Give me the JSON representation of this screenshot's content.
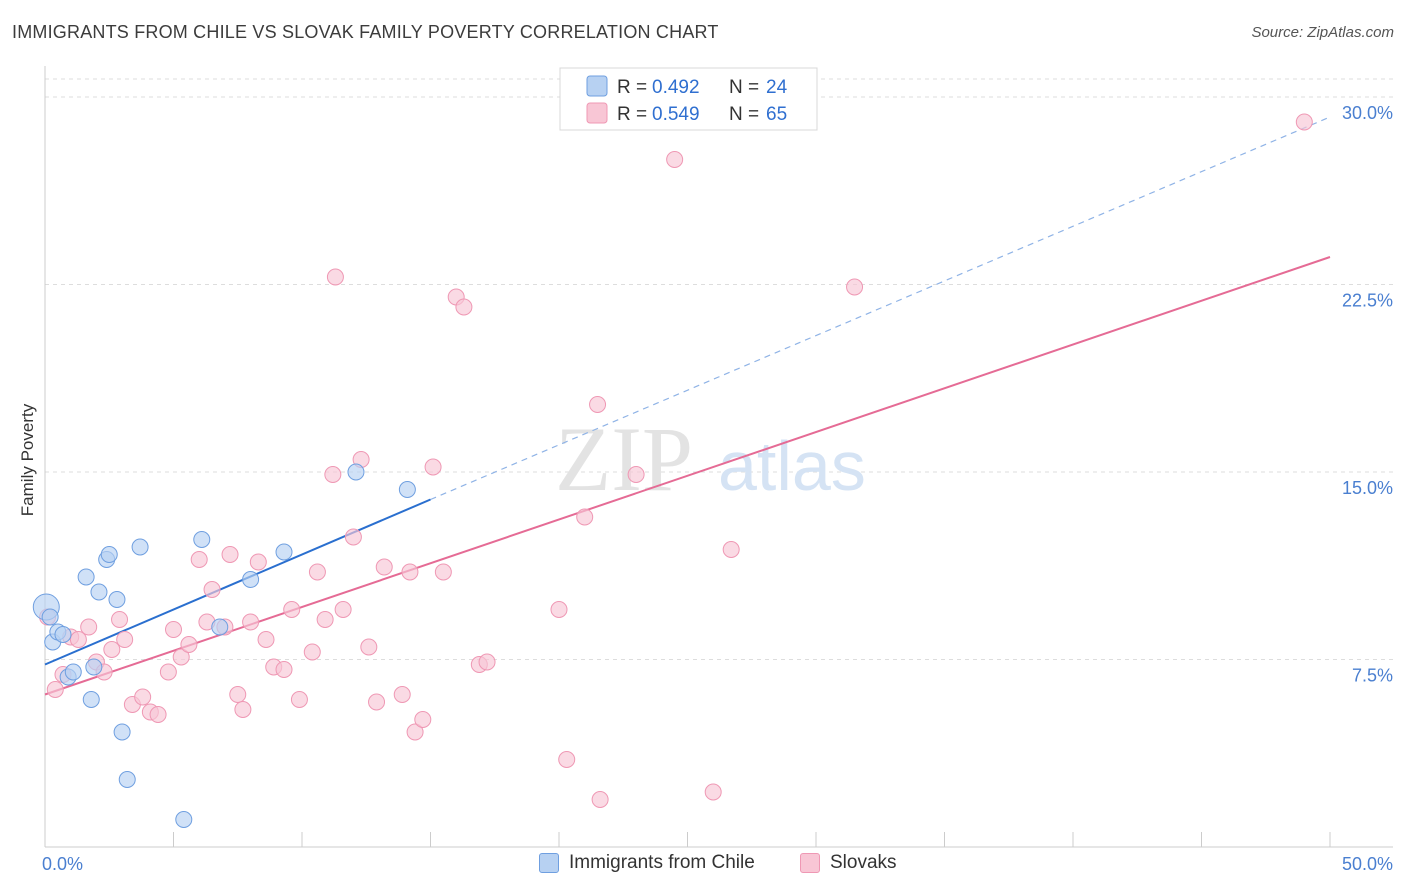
{
  "header": {
    "title": "IMMIGRANTS FROM CHILE VS SLOVAK FAMILY POVERTY CORRELATION CHART",
    "source": "Source: ZipAtlas.com"
  },
  "watermark": {
    "zip": "ZIP",
    "atlas": "atlas"
  },
  "colors": {
    "chile_fill": "#b7d1f2",
    "chile_stroke": "#6f9fe0",
    "chile_line": "#2a6fcf",
    "slovak_fill": "#f8c6d5",
    "slovak_stroke": "#ef98b4",
    "slovak_line": "#e56b95",
    "tick_label": "#4a7fd0",
    "grid": "#dddddd"
  },
  "legend_top": {
    "rows": [
      {
        "r_label": "R = ",
        "r_value": "0.492",
        "n_label": "N = ",
        "n_value": "24"
      },
      {
        "r_label": "R = ",
        "r_value": "0.549",
        "n_label": "N = ",
        "n_value": "65"
      }
    ]
  },
  "legend_bottom": {
    "items": [
      {
        "label": "Immigrants from Chile"
      },
      {
        "label": "Slovaks"
      }
    ]
  },
  "chart_data": {
    "type": "scatter",
    "title": "IMMIGRANTS FROM CHILE VS SLOVAK FAMILY POVERTY CORRELATION CHART",
    "xlabel": "",
    "ylabel": "Family Poverty",
    "xlim": [
      0,
      50
    ],
    "ylim": [
      0,
      31
    ],
    "x_tick_labels": [
      "0.0%",
      "50.0%"
    ],
    "y_ticks": [
      7.5,
      15.0,
      22.5,
      30.0
    ],
    "y_tick_labels": [
      "7.5%",
      "15.0%",
      "22.5%",
      "30.0%"
    ],
    "legend_position": "top-center",
    "series": [
      {
        "name": "Immigrants from Chile",
        "r": 0.492,
        "n": 24,
        "points": [
          [
            0.05,
            9.6
          ],
          [
            0.3,
            8.2
          ],
          [
            0.5,
            8.6
          ],
          [
            0.7,
            8.5
          ],
          [
            0.9,
            6.8
          ],
          [
            1.1,
            7.0
          ],
          [
            1.6,
            10.8
          ],
          [
            1.8,
            5.9
          ],
          [
            1.9,
            7.2
          ],
          [
            2.1,
            10.2
          ],
          [
            2.4,
            11.5
          ],
          [
            2.5,
            11.7
          ],
          [
            2.8,
            9.9
          ],
          [
            3.0,
            4.6
          ],
          [
            3.2,
            2.7
          ],
          [
            3.7,
            12.0
          ],
          [
            5.4,
            1.1
          ],
          [
            6.1,
            12.3
          ],
          [
            6.8,
            8.8
          ],
          [
            8.0,
            10.7
          ],
          [
            9.3,
            11.8
          ],
          [
            12.1,
            15.0
          ],
          [
            14.1,
            14.3
          ],
          [
            0.2,
            9.2
          ]
        ],
        "trend": {
          "x0": 0,
          "y0": 7.3,
          "x1": 15,
          "y1": 13.9
        },
        "trend_extension": {
          "x0": 15,
          "y0": 13.9,
          "x1": 50,
          "y1": 29.2
        }
      },
      {
        "name": "Slovaks",
        "r": 0.549,
        "n": 65,
        "points": [
          [
            0.1,
            9.2
          ],
          [
            0.4,
            6.3
          ],
          [
            0.7,
            6.9
          ],
          [
            1.0,
            8.4
          ],
          [
            1.3,
            8.3
          ],
          [
            1.7,
            8.8
          ],
          [
            2.0,
            7.4
          ],
          [
            2.3,
            7.0
          ],
          [
            2.6,
            7.9
          ],
          [
            2.9,
            9.1
          ],
          [
            3.1,
            8.3
          ],
          [
            3.4,
            5.7
          ],
          [
            3.8,
            6.0
          ],
          [
            4.1,
            5.4
          ],
          [
            4.4,
            5.3
          ],
          [
            4.8,
            7.0
          ],
          [
            5.0,
            8.7
          ],
          [
            5.3,
            7.6
          ],
          [
            5.6,
            8.1
          ],
          [
            6.0,
            11.5
          ],
          [
            6.3,
            9.0
          ],
          [
            6.5,
            10.3
          ],
          [
            7.0,
            8.8
          ],
          [
            7.2,
            11.7
          ],
          [
            7.5,
            6.1
          ],
          [
            7.7,
            5.5
          ],
          [
            8.0,
            9.0
          ],
          [
            8.3,
            11.4
          ],
          [
            8.6,
            8.3
          ],
          [
            8.9,
            7.2
          ],
          [
            9.3,
            7.1
          ],
          [
            9.6,
            9.5
          ],
          [
            9.9,
            5.9
          ],
          [
            10.4,
            7.8
          ],
          [
            10.6,
            11.0
          ],
          [
            10.9,
            9.1
          ],
          [
            11.3,
            22.8
          ],
          [
            11.6,
            9.5
          ],
          [
            12.0,
            12.4
          ],
          [
            12.3,
            15.5
          ],
          [
            12.6,
            8.0
          ],
          [
            12.9,
            5.8
          ],
          [
            13.2,
            11.2
          ],
          [
            13.9,
            6.1
          ],
          [
            14.2,
            11.0
          ],
          [
            14.4,
            4.6
          ],
          [
            14.7,
            5.1
          ],
          [
            15.1,
            15.2
          ],
          [
            15.5,
            11.0
          ],
          [
            16.0,
            22.0
          ],
          [
            16.3,
            21.6
          ],
          [
            16.9,
            7.3
          ],
          [
            17.2,
            7.4
          ],
          [
            20.0,
            9.5
          ],
          [
            20.3,
            3.5
          ],
          [
            21.0,
            13.2
          ],
          [
            21.5,
            17.7
          ],
          [
            21.6,
            1.9
          ],
          [
            23.0,
            14.9
          ],
          [
            24.5,
            27.5
          ],
          [
            26.0,
            2.2
          ],
          [
            26.7,
            11.9
          ],
          [
            31.5,
            22.4
          ],
          [
            49.0,
            29.0
          ],
          [
            11.2,
            14.9
          ]
        ],
        "trend": {
          "x0": 0,
          "y0": 6.1,
          "x1": 50,
          "y1": 23.6
        }
      }
    ]
  }
}
